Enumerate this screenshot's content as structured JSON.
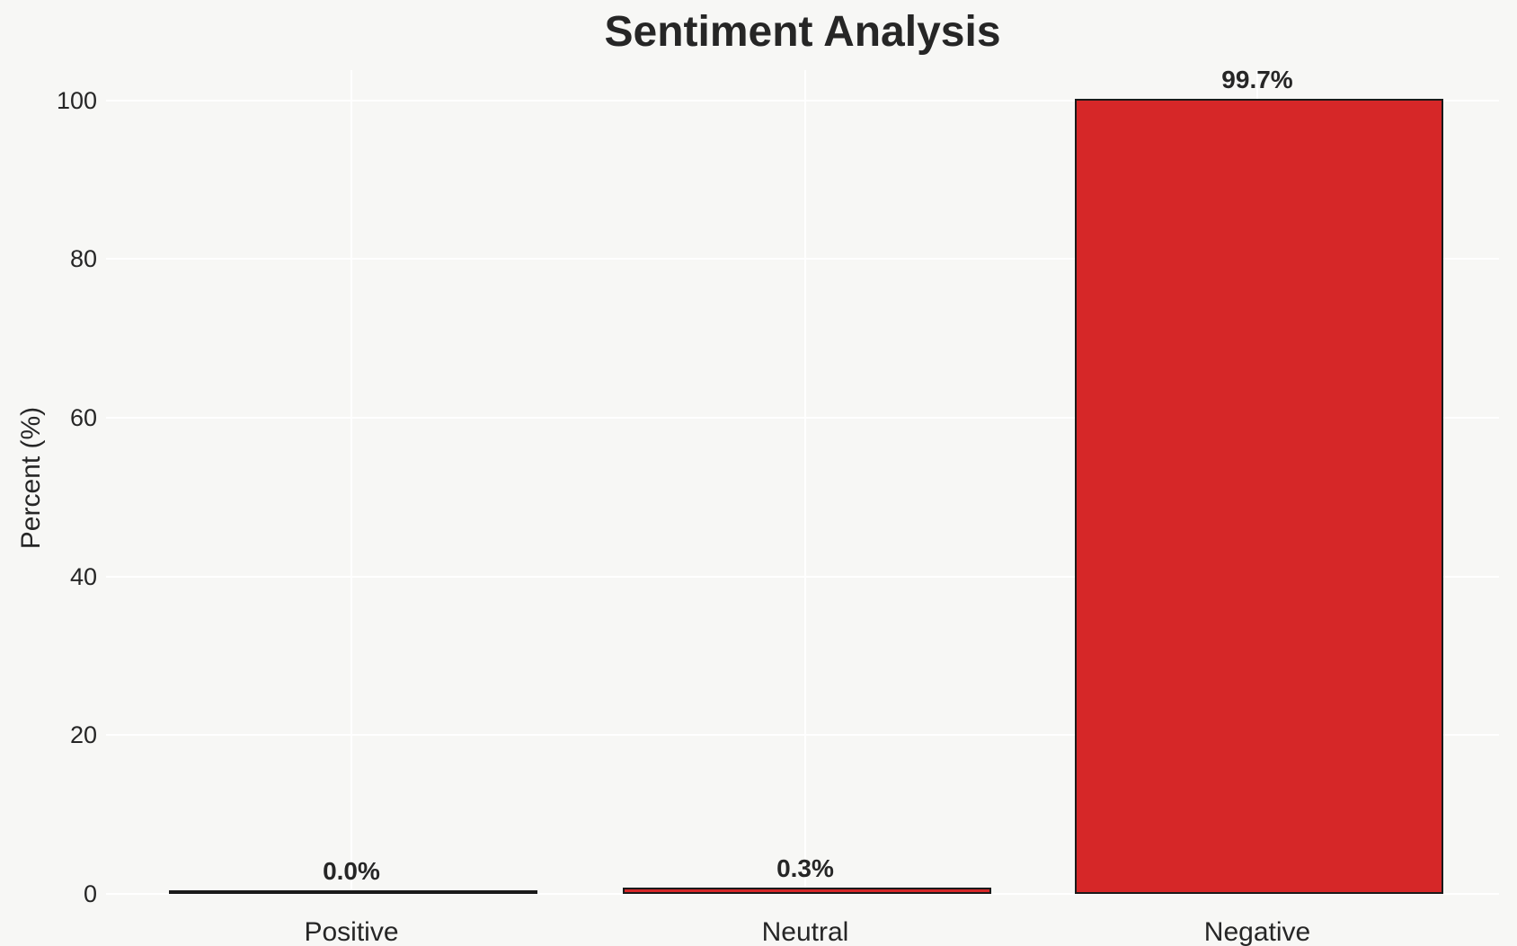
{
  "chart_data": {
    "type": "bar",
    "title": "Sentiment Analysis",
    "ylabel": "Percent (%)",
    "xlabel": "",
    "categories": [
      "Positive",
      "Neutral",
      "Negative"
    ],
    "values": [
      0.0,
      0.3,
      99.7
    ],
    "bar_labels": [
      "0.0%",
      "0.3%",
      "99.7%"
    ],
    "yticks": [
      0,
      20,
      40,
      60,
      80,
      100
    ],
    "ylim": [
      0,
      103.8
    ],
    "grid": true,
    "legend": false,
    "colors": {
      "bar_fill": "#d62728",
      "bar_edge": "#1a1a1a",
      "background": "#f7f7f5",
      "gridline": "#ffffff",
      "text": "#262626"
    }
  }
}
